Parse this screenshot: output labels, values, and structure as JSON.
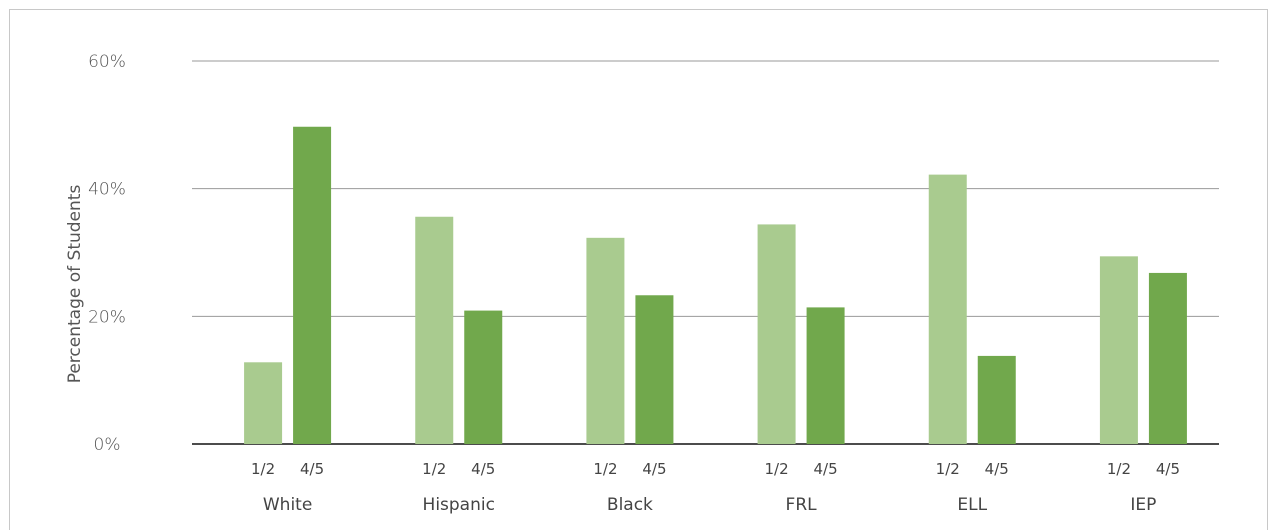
{
  "chart_data": {
    "type": "bar",
    "title": "",
    "xlabel": "",
    "ylabel": "Percentage of Students",
    "ylim": [
      0,
      60
    ],
    "yticks": [
      0,
      20,
      40,
      60
    ],
    "ytick_labels": [
      "0%",
      "20%",
      "40%",
      "60%"
    ],
    "grid": true,
    "legend": "none",
    "categories": [
      "White",
      "Hispanic",
      "Black",
      "FRL",
      "ELL",
      "IEP"
    ],
    "series": [
      {
        "label": "1/2",
        "color": "#a9cb8f",
        "values": [
          12.8,
          35.6,
          32.3,
          34.4,
          42.2,
          29.4
        ]
      },
      {
        "label": "4/5",
        "color": "#71a84c",
        "values": [
          49.7,
          20.9,
          23.3,
          21.4,
          13.8,
          26.8
        ]
      }
    ]
  }
}
